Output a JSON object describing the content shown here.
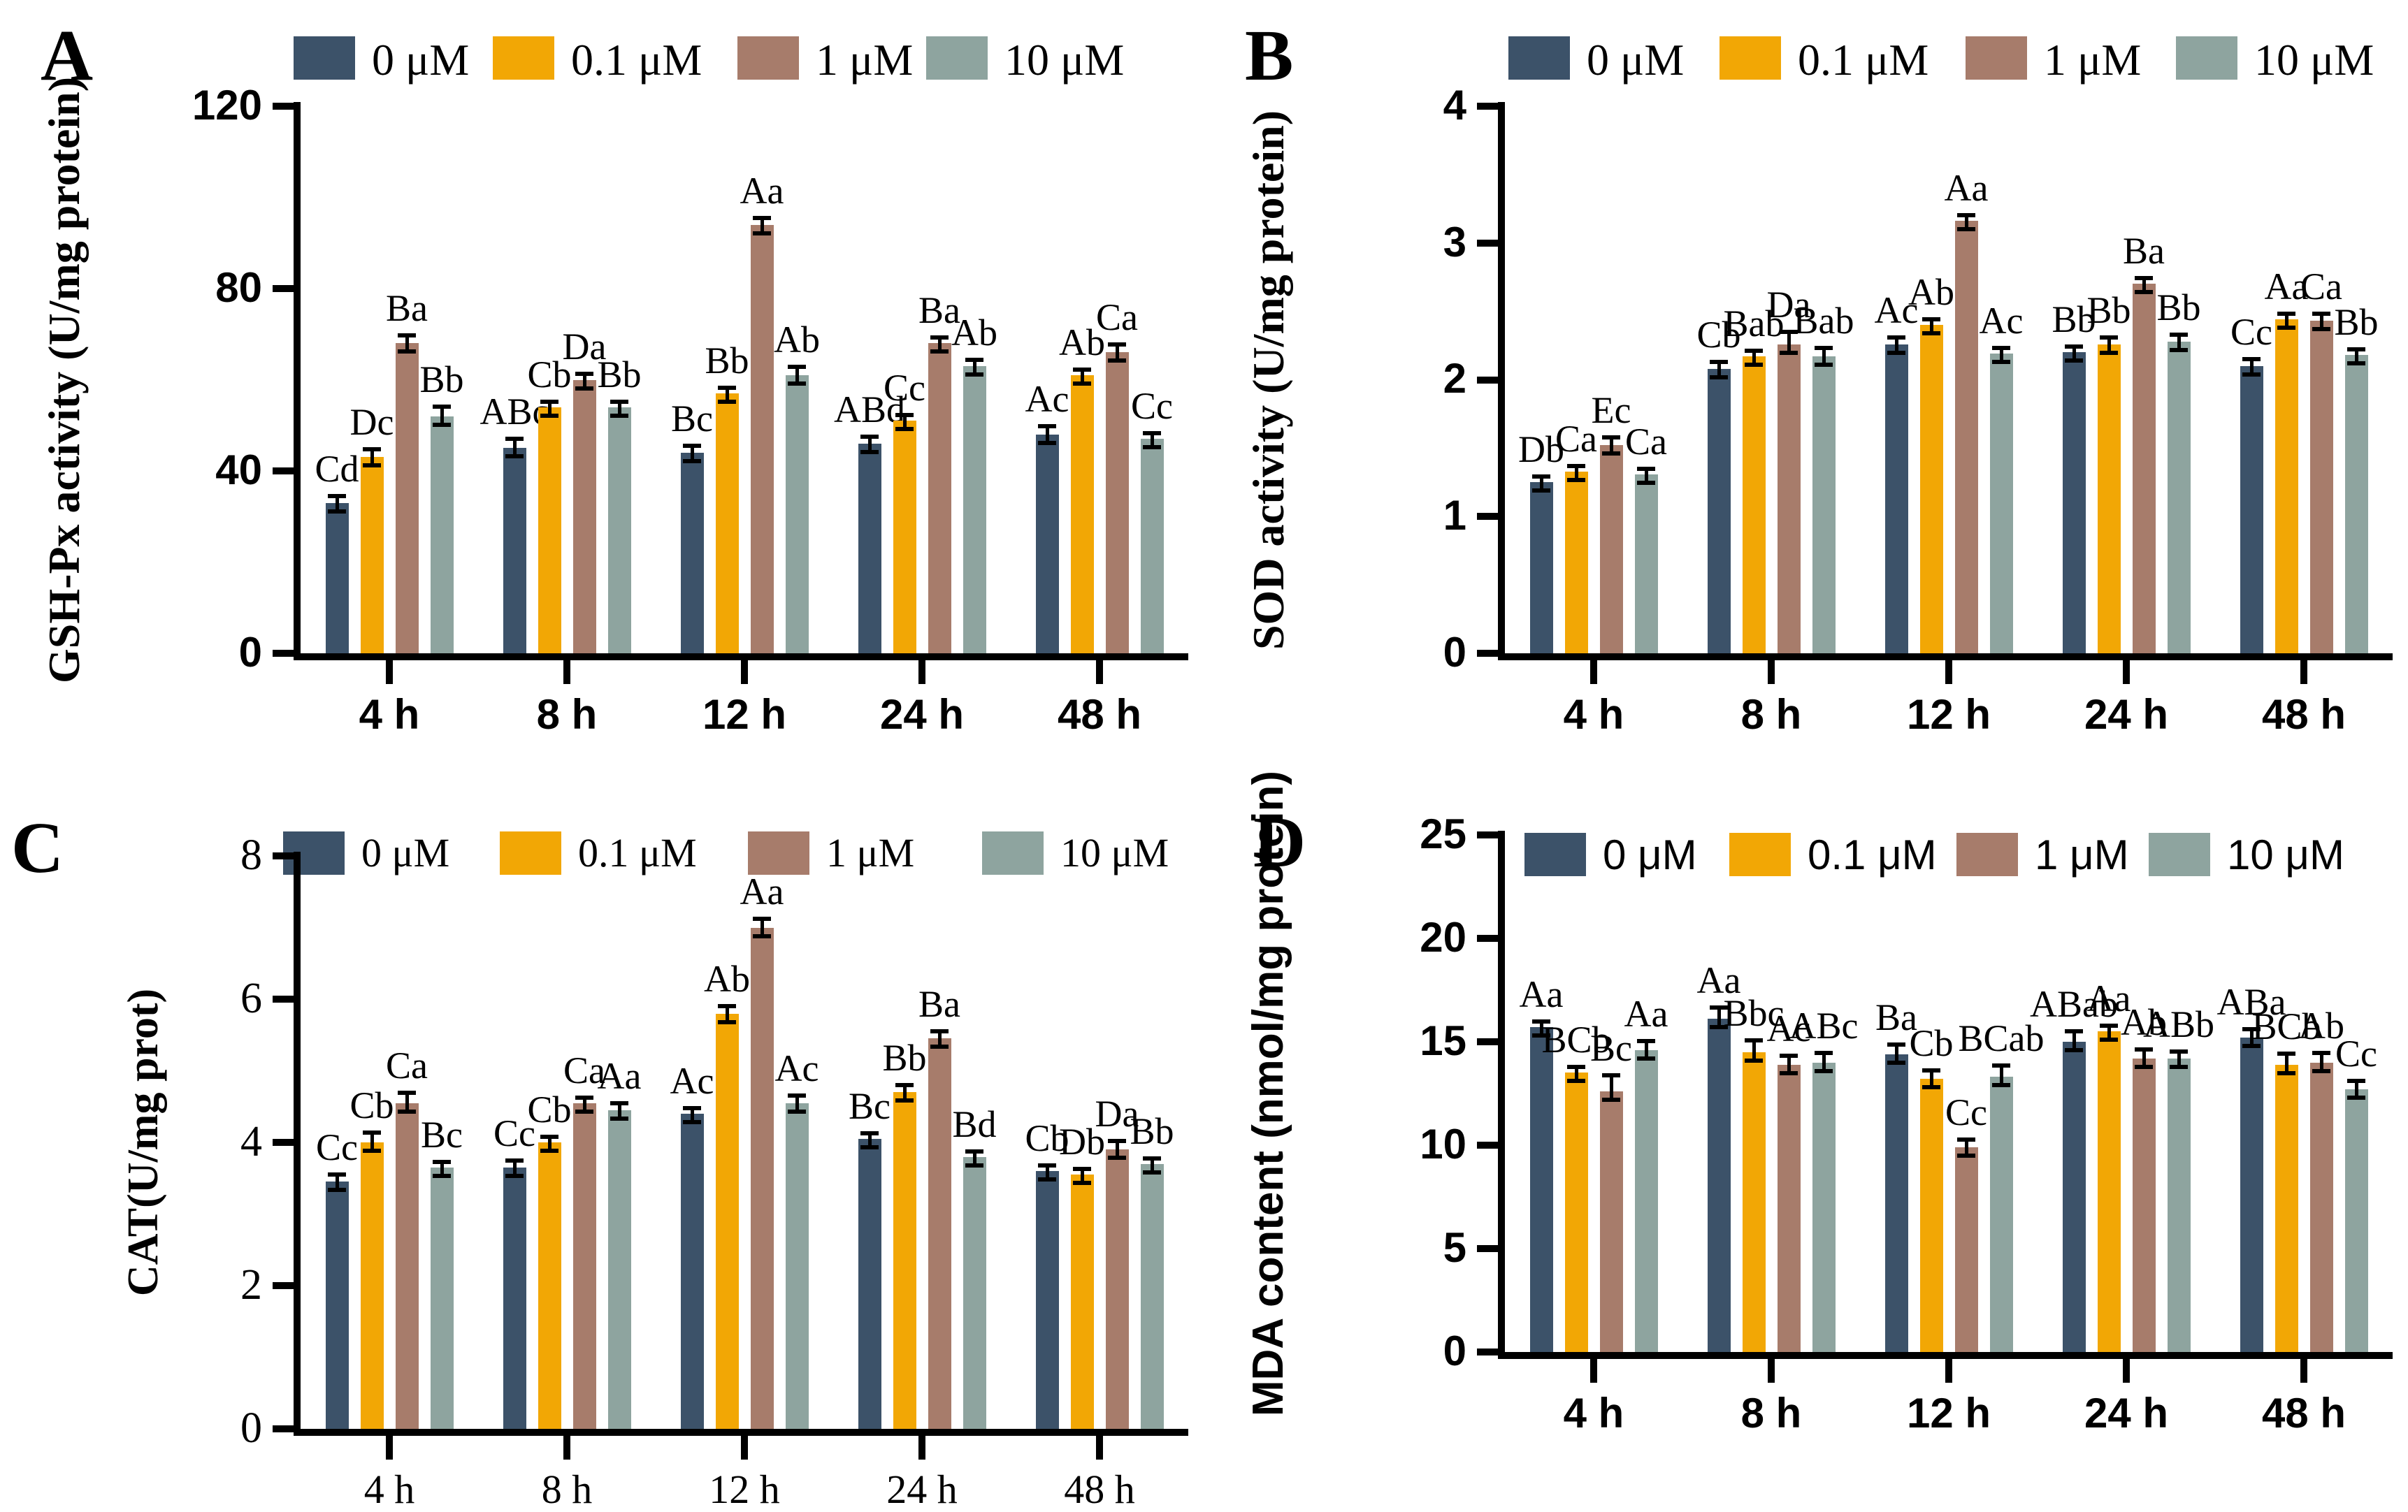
{
  "figure": {
    "legend_labels": [
      "0 μM",
      "0.1 μM",
      "1 μM",
      "10 μM"
    ],
    "series_colors": [
      "#3C5269",
      "#F2A705",
      "#A77C6B",
      "#8EA49F"
    ],
    "axis_color": "#000000",
    "background_color": "#ffffff",
    "panel_letters": [
      "A",
      "B",
      "C",
      "D"
    ],
    "categories": [
      "4 h",
      "8 h",
      "12 h",
      "24 h",
      "48 h"
    ]
  },
  "chart_data": [
    {
      "panel": "A",
      "type": "bar",
      "title": "",
      "xlabel": "",
      "ylabel": "GSH-Px activity (U/mg protein)",
      "ylim": [
        0,
        120
      ],
      "yticks": [
        0,
        40,
        80,
        120
      ],
      "categories": [
        "4 h",
        "8 h",
        "12 h",
        "24 h",
        "48 h"
      ],
      "legend_position": "top",
      "grid": false,
      "series": [
        {
          "name": "0 μM",
          "values": [
            33,
            45,
            44,
            46,
            48
          ],
          "errors": [
            1.2,
            1.8,
            1.2,
            1.2,
            1.5
          ],
          "sig_labels": [
            "Cd",
            "ABc",
            "Bc",
            "ABd",
            "Ac"
          ]
        },
        {
          "name": "0.1 μM",
          "values": [
            43,
            54,
            57,
            51,
            61
          ],
          "errors": [
            1.5,
            0.8,
            1.0,
            1.0,
            0.8
          ],
          "sig_labels": [
            "Dc",
            "Cb",
            "Bb",
            "Cc",
            "Ab"
          ]
        },
        {
          "name": "1 μM",
          "values": [
            68,
            60,
            94,
            68,
            66
          ],
          "errors": [
            1.5,
            1.0,
            1.2,
            0.8,
            1.5
          ],
          "sig_labels": [
            "Ba",
            "Da",
            "Aa",
            "Ba",
            "Ca"
          ]
        },
        {
          "name": "10 μM",
          "values": [
            52,
            54,
            61,
            63,
            47
          ],
          "errors": [
            1.8,
            0.8,
            1.5,
            1.0,
            1.0
          ],
          "sig_labels": [
            "Bb",
            "Bb",
            "Ab",
            "Ab",
            "Cc"
          ]
        }
      ]
    },
    {
      "panel": "B",
      "type": "bar",
      "title": "",
      "xlabel": "",
      "ylabel": "SOD activity (U/mg protein)",
      "ylim": [
        0,
        4
      ],
      "yticks": [
        0,
        1,
        2,
        3,
        4
      ],
      "categories": [
        "4 h",
        "8 h",
        "12 h",
        "24 h",
        "48 h"
      ],
      "legend_position": "top",
      "grid": false,
      "series": [
        {
          "name": "0 μM",
          "values": [
            1.25,
            2.08,
            2.26,
            2.2,
            2.1
          ],
          "errors": [
            0.02,
            0.04,
            0.04,
            0.03,
            0.04
          ],
          "sig_labels": [
            "Db",
            "Cb",
            "Ac",
            "Bb",
            "Cc"
          ]
        },
        {
          "name": "0.1 μM",
          "values": [
            1.33,
            2.17,
            2.4,
            2.26,
            2.44
          ],
          "errors": [
            0.02,
            0.02,
            0.03,
            0.04,
            0.03
          ],
          "sig_labels": [
            "Ca",
            "Bab",
            "Ab",
            "Bb",
            "Aa"
          ]
        },
        {
          "name": "1 μM",
          "values": [
            1.52,
            2.26,
            3.16,
            2.7,
            2.43
          ],
          "errors": [
            0.05,
            0.08,
            0.03,
            0.03,
            0.04
          ],
          "sig_labels": [
            "Ec",
            "Da",
            "Aa",
            "Ba",
            "Ca"
          ]
        },
        {
          "name": "10 μM",
          "values": [
            1.31,
            2.17,
            2.19,
            2.28,
            2.18
          ],
          "errors": [
            0.03,
            0.05,
            0.03,
            0.04,
            0.02
          ],
          "sig_labels": [
            "Ca",
            "Bab",
            "Ac",
            "Bb",
            "Bb"
          ]
        }
      ]
    },
    {
      "panel": "C",
      "type": "bar",
      "title": "",
      "xlabel": "",
      "ylabel": "CAT(U/mg prot)",
      "ylim": [
        0,
        8
      ],
      "yticks": [
        0,
        2,
        4,
        6,
        8
      ],
      "categories": [
        "4 h",
        "8 h",
        "12 h",
        "24 h",
        "48 h"
      ],
      "legend_position": "top",
      "grid": false,
      "series": [
        {
          "name": "0 μM",
          "values": [
            3.45,
            3.65,
            4.4,
            4.05,
            3.6
          ],
          "errors": [
            0.08,
            0.08,
            0.06,
            0.06,
            0.05
          ],
          "sig_labels": [
            "Cc",
            "Cc",
            "Ac",
            "Bc",
            "Cb"
          ]
        },
        {
          "name": "0.1 μM",
          "values": [
            4.0,
            4.0,
            5.8,
            4.7,
            3.55
          ],
          "errors": [
            0.12,
            0.06,
            0.08,
            0.08,
            0.06
          ],
          "sig_labels": [
            "Cb",
            "Cb",
            "Ab",
            "Bb",
            "Db"
          ]
        },
        {
          "name": "1 μM",
          "values": [
            4.55,
            4.55,
            7.0,
            5.45,
            3.9
          ],
          "errors": [
            0.12,
            0.05,
            0.1,
            0.08,
            0.1
          ],
          "sig_labels": [
            "Ca",
            "Ca",
            "Aa",
            "Ba",
            "Da"
          ]
        },
        {
          "name": "10 μM",
          "values": [
            3.65,
            4.45,
            4.55,
            3.8,
            3.7
          ],
          "errors": [
            0.05,
            0.08,
            0.08,
            0.05,
            0.06
          ],
          "sig_labels": [
            "Bc",
            "Aa",
            "Ac",
            "Bd",
            "Bb"
          ]
        }
      ]
    },
    {
      "panel": "D",
      "type": "bar",
      "title": "",
      "xlabel": "",
      "ylabel": "MDA content (nmol/mg protein)",
      "ylim": [
        0,
        25
      ],
      "yticks": [
        0,
        5,
        10,
        15,
        20,
        25
      ],
      "categories": [
        "4 h",
        "8 h",
        "12 h",
        "24 h",
        "48 h"
      ],
      "legend_position": "top",
      "grid": false,
      "series": [
        {
          "name": "0 μM",
          "values": [
            15.7,
            16.1,
            14.4,
            15.0,
            15.2
          ],
          "errors": [
            0.15,
            0.5,
            0.4,
            0.45,
            0.35
          ],
          "sig_labels": [
            "Aa",
            "Aa",
            "Ba",
            "ABab",
            "ABa"
          ]
        },
        {
          "name": "0.1 μM",
          "values": [
            13.5,
            14.5,
            13.2,
            15.5,
            13.9
          ],
          "errors": [
            0.1,
            0.5,
            0.35,
            0.2,
            0.45
          ],
          "sig_labels": [
            "BCb",
            "Bbc",
            "Cb",
            "Aa",
            "BCb"
          ]
        },
        {
          "name": "1 μM",
          "values": [
            12.6,
            13.9,
            9.9,
            14.2,
            14.0
          ],
          "errors": [
            0.7,
            0.35,
            0.3,
            0.35,
            0.4
          ],
          "sig_labels": [
            "Bc",
            "Ac",
            "Cc",
            "Ab",
            "Ab"
          ]
        },
        {
          "name": "10 μM",
          "values": [
            14.6,
            14.0,
            13.3,
            14.2,
            12.7
          ],
          "errors": [
            0.35,
            0.4,
            0.5,
            0.25,
            0.35
          ],
          "sig_labels": [
            "Aa",
            "ABc",
            "BCab",
            "ABb",
            "Cc"
          ]
        }
      ]
    }
  ]
}
